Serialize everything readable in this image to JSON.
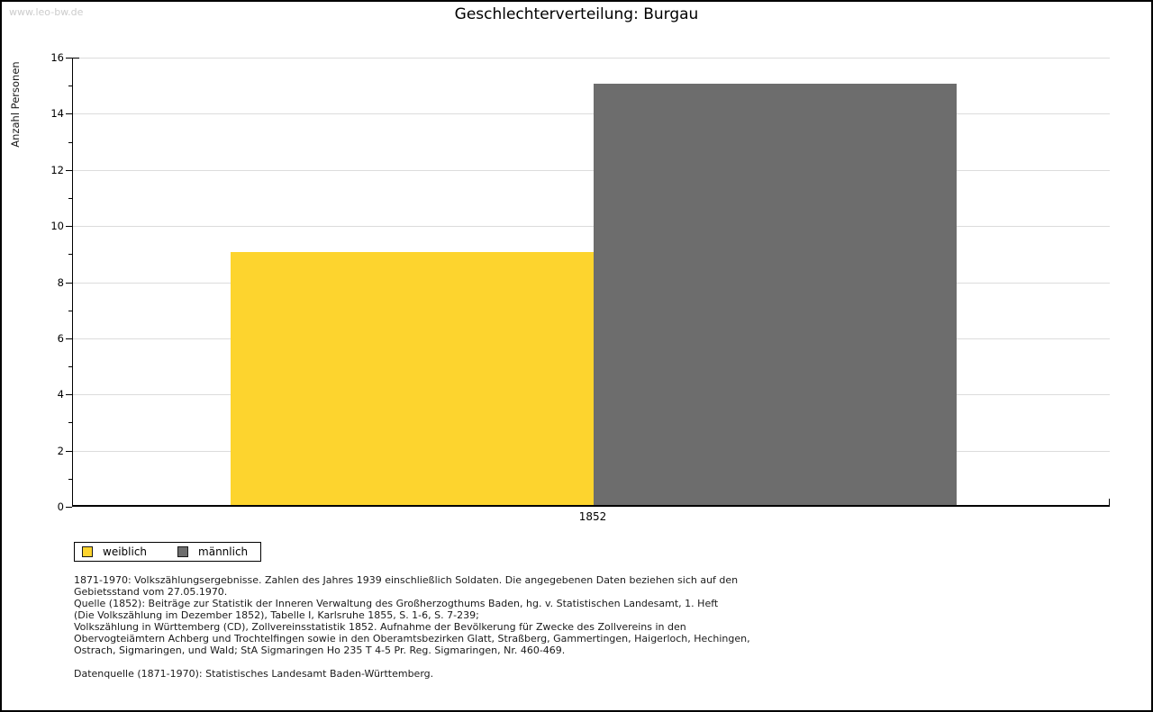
{
  "watermark": "www.leo-bw.de",
  "chart_data": {
    "type": "bar",
    "title": "Geschlechterverteilung: Burgau",
    "ylabel": "Anzahl Personen",
    "xlabel": "",
    "categories": [
      "1852"
    ],
    "series": [
      {
        "name": "weiblich",
        "values": [
          9
        ],
        "color": "#fdd42e"
      },
      {
        "name": "männlich",
        "values": [
          15
        ],
        "color": "#6d6d6d"
      }
    ],
    "ylim": [
      0,
      16
    ],
    "yticks": [
      0,
      2,
      4,
      6,
      8,
      10,
      12,
      14,
      16
    ],
    "minor_tick_step": 1,
    "grid": true,
    "legend_position": "bottom-left",
    "colors": {
      "grid": "#dcdcdc",
      "axis": "#000000"
    }
  },
  "notes": {
    "lines": [
      "1871-1970: Volkszählungsergebnisse. Zahlen des Jahres 1939 einschließlich Soldaten. Die angegebenen Daten beziehen sich auf den",
      "Gebietsstand vom 27.05.1970.",
      "Quelle (1852): Beiträge zur Statistik der Inneren Verwaltung des Großherzogthums Baden, hg. v. Statistischen Landesamt, 1. Heft",
      "(Die Volkszählung im Dezember 1852), Tabelle I, Karlsruhe 1855, S. 1-6, S. 7-239;",
      "Volkszählung in Württemberg (CD), Zollvereinsstatistik 1852. Aufnahme der Bevölkerung für Zwecke des Zollvereins in den",
      "Obervogteiämtern Achberg und Trochtelfingen sowie in den Oberamtsbezirken Glatt, Straßberg, Gammertingen, Haigerloch, Hechingen,",
      "Ostrach, Sigmaringen, und Wald; StA Sigmaringen Ho 235 T 4-5 Pr. Reg. Sigmaringen, Nr. 460-469."
    ],
    "datasource": "Datenquelle (1871-1970): Statistisches Landesamt Baden-Württemberg."
  }
}
